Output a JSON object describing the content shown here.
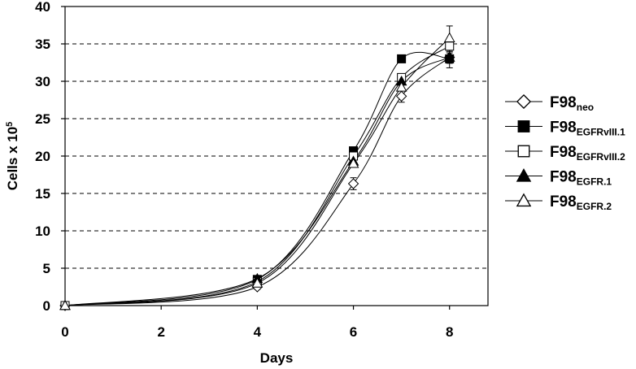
{
  "chart_data": {
    "type": "line",
    "xlabel": "Days",
    "ylabel": "Cells x 10",
    "ylabel_superscript": "5",
    "xlim": [
      0,
      8.8
    ],
    "ylim": [
      0,
      40
    ],
    "xticks": [
      0,
      2,
      4,
      6,
      8
    ],
    "yticks": [
      0,
      5,
      10,
      15,
      20,
      25,
      30,
      35,
      40
    ],
    "grid": "horizontal dashed",
    "legend_position": "right",
    "x": [
      0,
      4,
      6,
      7,
      8
    ],
    "series": [
      {
        "name": "F98",
        "subscript": "neo",
        "marker": "diamond-open",
        "values": [
          0,
          2.5,
          16.3,
          28.0,
          33.2
        ],
        "errors": [
          0,
          0.3,
          0.8,
          0.8,
          0.8
        ]
      },
      {
        "name": "F98",
        "subscript": "EGFRvIII.1",
        "marker": "square-filled",
        "values": [
          0,
          3.5,
          20.7,
          33.0,
          33.0
        ],
        "errors": [
          0,
          0.3,
          0.5,
          0.5,
          1.2
        ]
      },
      {
        "name": "F98",
        "subscript": "EGFRvIII.2",
        "marker": "square-open",
        "values": [
          0,
          3.2,
          20.0,
          30.5,
          34.7
        ],
        "errors": [
          0,
          0.3,
          0.5,
          0.5,
          0.7
        ]
      },
      {
        "name": "F98",
        "subscript": "EGFR.1",
        "marker": "triangle-filled",
        "values": [
          0,
          3.6,
          19.3,
          30.0,
          33.2
        ],
        "errors": [
          0,
          0.3,
          0.5,
          0.5,
          0.6
        ]
      },
      {
        "name": "F98",
        "subscript": "EGFR.2",
        "marker": "triangle-open",
        "values": [
          0,
          3.0,
          19.0,
          29.2,
          35.8
        ],
        "errors": [
          0,
          0.3,
          0.5,
          0.5,
          1.6
        ]
      }
    ]
  }
}
